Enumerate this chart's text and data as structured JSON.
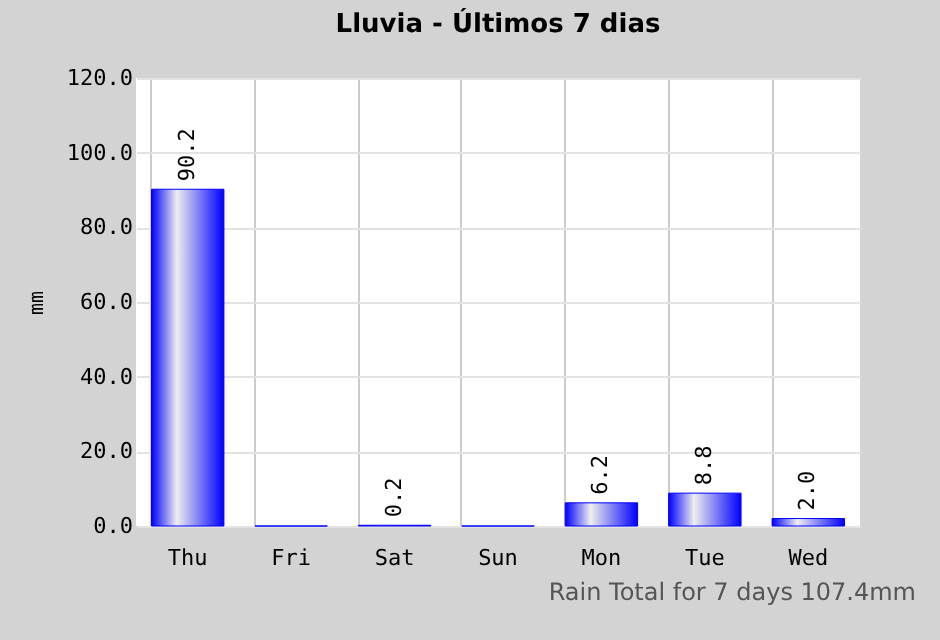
{
  "chart_data": {
    "type": "bar",
    "title": "Lluvia - Últimos 7 dias",
    "ylabel": "mm",
    "categories": [
      "Thu",
      "Fri",
      "Sat",
      "Sun",
      "Mon",
      "Tue",
      "Wed"
    ],
    "values": [
      90.2,
      0,
      0.2,
      0,
      6.2,
      8.8,
      2.0
    ],
    "value_labels": [
      "90.2",
      null,
      "0.2",
      null,
      "6.2",
      "8.8",
      "2.0"
    ],
    "color": "#0000ff",
    "ylim": [
      0,
      120
    ],
    "yticks": [
      {
        "value": 0,
        "label": "0.0"
      },
      {
        "value": 20,
        "label": "20.0"
      },
      {
        "value": 40,
        "label": "40.0"
      },
      {
        "value": 60,
        "label": "60.0"
      },
      {
        "value": 80,
        "label": "80.0"
      },
      {
        "value": 100,
        "label": "100.0"
      },
      {
        "value": 120,
        "label": "120.0"
      }
    ],
    "grid": true,
    "annotations": [
      "Rain Total for 7 days 107.4mm"
    ]
  }
}
